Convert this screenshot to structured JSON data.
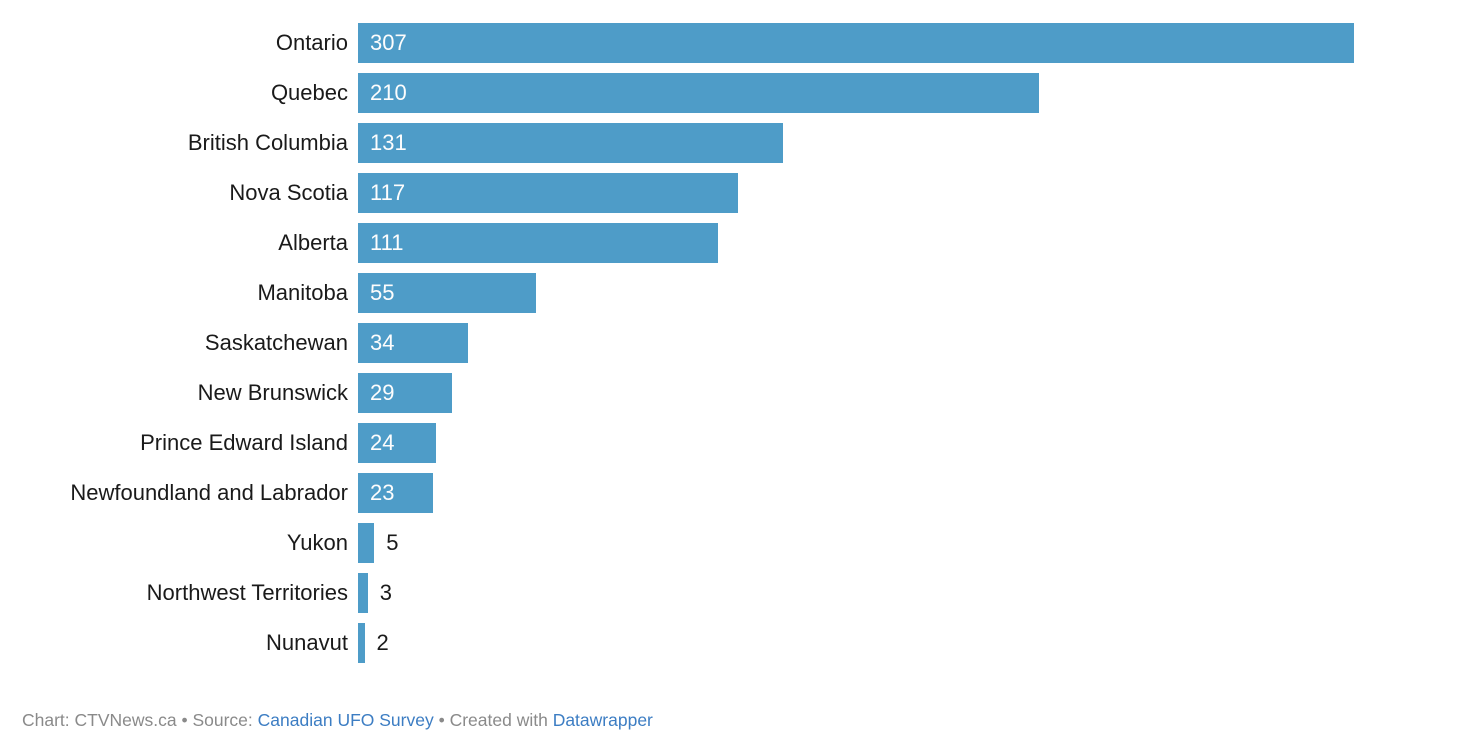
{
  "chart_data": {
    "type": "bar",
    "orientation": "horizontal",
    "title": "",
    "xlabel": "",
    "ylabel": "",
    "categories": [
      "Ontario",
      "Quebec",
      "British Columbia",
      "Nova Scotia",
      "Alberta",
      "Manitoba",
      "Saskatchewan",
      "New Brunswick",
      "Prince Edward Island",
      "Newfoundland and Labrador",
      "Yukon",
      "Northwest Territories",
      "Nunavut"
    ],
    "values": [
      307,
      210,
      131,
      117,
      111,
      55,
      34,
      29,
      24,
      23,
      5,
      3,
      2
    ],
    "xlim": [
      0,
      307
    ],
    "grid": false,
    "legend": false,
    "value_labels": true,
    "bar_color": "#4e9cc8",
    "value_label_inside_color": "#fdfdfd",
    "value_label_outside_color": "#1a1a1a"
  },
  "footer": {
    "credit_text": "Chart: CTVNews.ca • Source: ",
    "source_link_label": "Canadian UFO Survey",
    "created_with_text": " • Created with ",
    "tool_link_label": "Datawrapper"
  }
}
